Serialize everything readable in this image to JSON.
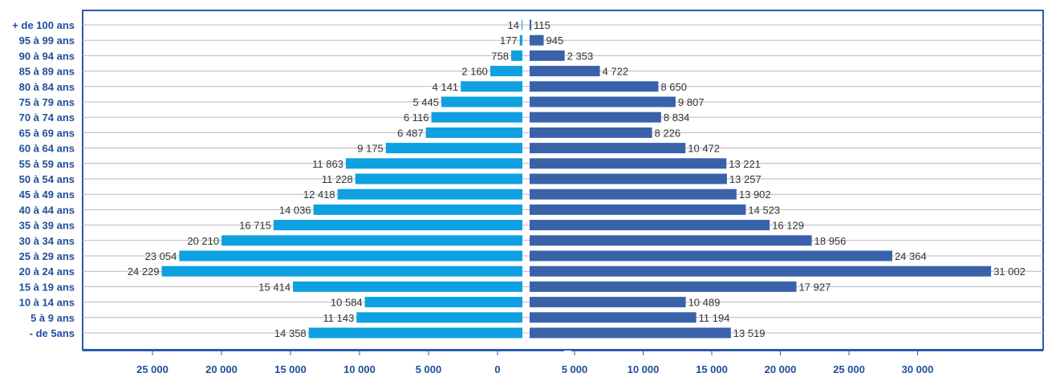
{
  "chart_data": {
    "type": "bar",
    "subtype": "population-pyramid",
    "orientation": "horizontal",
    "categories": [
      "+ de 100 ans",
      "95 à 99 ans",
      "90 à 94 ans",
      "85 à 89 ans",
      "80 à 84 ans",
      "75  à 79 ans",
      "70 à 74 ans",
      "65 à 69 ans",
      "60 à 64 ans",
      "55 à 59 ans",
      "50 à 54 ans",
      "45 à 49 ans",
      "40 à 44 ans",
      "35 à 39 ans",
      "30 à 34 ans",
      "25 à 29 ans",
      "20 à 24 ans",
      "15 à 19 ans",
      "10 à 14 ans",
      "5 à 9 ans",
      "- de 5ans"
    ],
    "series": [
      {
        "side": "left",
        "color": "#0ea0e0",
        "values": [
          14,
          177,
          758,
          2160,
          4141,
          5445,
          6116,
          6487,
          9175,
          11863,
          11228,
          12418,
          14036,
          16715,
          20210,
          23054,
          24229,
          15414,
          10584,
          11143,
          14358
        ],
        "labels": [
          "14",
          "177",
          "758",
          "2 160",
          "4 141",
          "5 445",
          "6 116",
          "6 487",
          "9 175",
          "11 863",
          "11 228",
          "12 418",
          "14 036",
          "16 715",
          "20 210",
          "23 054",
          "24 229",
          "15 414",
          "10 584",
          "11 143",
          "14 358"
        ]
      },
      {
        "side": "right",
        "color": "#3a62ab",
        "values": [
          115,
          945,
          2353,
          4722,
          8650,
          9807,
          8834,
          8226,
          10472,
          13221,
          13257,
          13902,
          14523,
          16129,
          18956,
          24364,
          31002,
          17927,
          10489,
          11194,
          13519
        ],
        "labels": [
          "115",
          "945",
          "2 353",
          "4 722",
          "8 650",
          "9 807",
          "8 834",
          "8 226",
          "10 472",
          "13 221",
          "13 257",
          "13 902",
          "14 523",
          "16 129",
          "18 956",
          "24 364",
          "31 002",
          "17 927",
          "10 489",
          "11 194",
          "13 519"
        ]
      }
    ],
    "x_axis_left": {
      "ticks": [
        25000,
        20000,
        15000,
        10000,
        5000,
        0
      ],
      "tick_labels": [
        "25 000",
        "20 000",
        "15 000",
        "10 000",
        "5 000",
        "0"
      ]
    },
    "x_axis_right": {
      "ticks": [
        5000,
        10000,
        15000,
        20000,
        25000,
        30000
      ],
      "tick_labels": [
        "5 000",
        "10 000",
        "15 000",
        "20 000",
        "25 000",
        "30 000"
      ]
    },
    "title": "",
    "xlabel": "",
    "ylabel": "",
    "grid": true,
    "legend": "none"
  }
}
